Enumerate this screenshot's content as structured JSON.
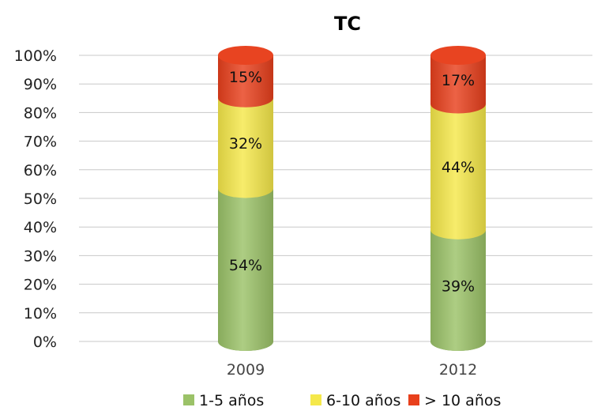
{
  "chart_data": {
    "type": "bar",
    "stacked": true,
    "title": "TC",
    "xlabel": "",
    "ylabel": "",
    "categories": [
      "2009",
      "2012"
    ],
    "series": [
      {
        "name": "1-5 años",
        "values": [
          54,
          39
        ],
        "labels": [
          "54%",
          "39%"
        ],
        "color": "#9bc268"
      },
      {
        "name": "6-10 años",
        "values": [
          32,
          44
        ],
        "labels": [
          "32%",
          "44%"
        ],
        "color": "#f5e84a"
      },
      {
        "name": "> 10 años",
        "values": [
          15,
          17
        ],
        "labels": [
          "15%",
          "17%"
        ],
        "color": "#e8401c"
      }
    ],
    "ylim": [
      0,
      100
    ],
    "yticks": [
      "0%",
      "10%",
      "20%",
      "30%",
      "40%",
      "50%",
      "60%",
      "70%",
      "80%",
      "90%",
      "100%"
    ],
    "grid": true,
    "legend": "bottom"
  }
}
